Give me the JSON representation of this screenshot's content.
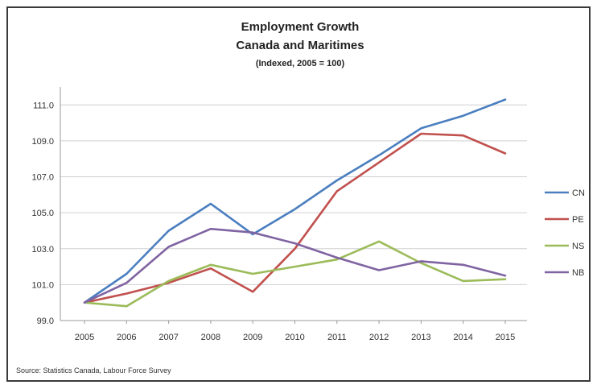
{
  "chart_data": {
    "type": "line",
    "title_lines": [
      "Employment Growth",
      "Canada and Maritimes"
    ],
    "subtitle": "(Indexed, 2005 = 100)",
    "x": [
      "2005",
      "2006",
      "2007",
      "2008",
      "2009",
      "2010",
      "2011",
      "2012",
      "2013",
      "2014",
      "2015"
    ],
    "ylim": [
      99.0,
      112.0
    ],
    "yticks": [
      "99.0",
      "101.0",
      "103.0",
      "105.0",
      "107.0",
      "109.0",
      "111.0"
    ],
    "ytick_values": [
      99,
      101,
      103,
      105,
      107,
      109,
      111
    ],
    "grid": true,
    "legend_position": "right",
    "series": [
      {
        "name": "CN",
        "color": "#4a7ebf",
        "values": [
          100.0,
          101.6,
          104.0,
          105.5,
          103.8,
          105.2,
          106.8,
          108.2,
          109.7,
          110.4,
          111.3
        ]
      },
      {
        "name": "PE",
        "color": "#c0504d",
        "values": [
          100.0,
          100.5,
          101.1,
          101.9,
          100.6,
          103.0,
          106.2,
          107.8,
          109.4,
          109.3,
          108.3
        ]
      },
      {
        "name": "NS",
        "color": "#9bbb59",
        "values": [
          100.0,
          99.8,
          101.2,
          102.1,
          101.6,
          102.0,
          102.4,
          103.4,
          102.2,
          101.2,
          101.3
        ]
      },
      {
        "name": "NB",
        "color": "#8064a2",
        "values": [
          100.0,
          101.1,
          103.1,
          104.1,
          103.9,
          103.3,
          102.5,
          101.8,
          102.3,
          102.1,
          101.5
        ]
      }
    ],
    "source": "Source: Statistics Canada, Labour Force Survey"
  }
}
